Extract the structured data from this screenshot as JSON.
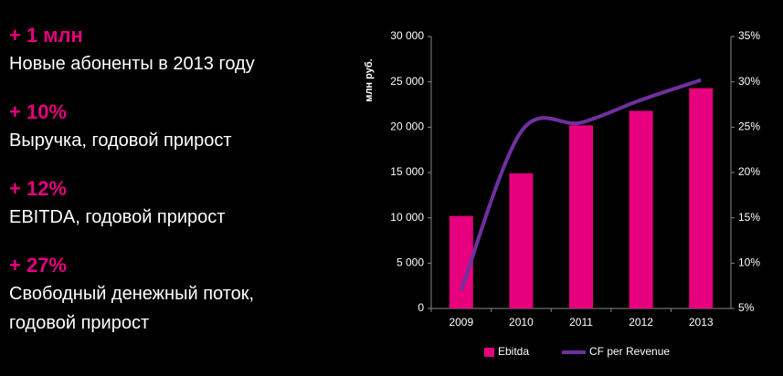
{
  "highlights": [
    {
      "value": "+ 1 млн",
      "lines": [
        "Новые абоненты в 2013 году"
      ]
    },
    {
      "value": "+ 10%",
      "lines": [
        "Выручка, годовой прирост"
      ]
    },
    {
      "value": "+ 12%",
      "lines": [
        "EBITDA, годовой прирост"
      ]
    },
    {
      "value": "+ 27%",
      "lines": [
        "Свободный денежный поток,",
        "годовой прирост"
      ]
    }
  ],
  "chart_data": {
    "type": "bar",
    "y_label": "млн руб.",
    "categories": [
      "2009",
      "2010",
      "2011",
      "2012",
      "2013"
    ],
    "series": [
      {
        "name": "Ebitda",
        "color": "#e6007e",
        "type": "bar",
        "values": [
          10200,
          14900,
          20200,
          21800,
          24300
        ]
      },
      {
        "name": "CF per Revenue",
        "color": "#7030a0",
        "type": "line",
        "axis": "y2",
        "values": [
          7,
          24.5,
          25.5,
          28,
          30.2
        ]
      }
    ],
    "ylim": [
      0,
      30000
    ],
    "yticks": [
      0,
      {
        "value": 5000,
        "label": "5 000"
      },
      {
        "value": 10000,
        "label": "10 000"
      },
      {
        "value": 15000,
        "label": "15 000"
      },
      {
        "value": 20000,
        "label": "20 000"
      },
      {
        "value": 25000,
        "label": "25 000"
      },
      {
        "value": 30000,
        "label": "30 000"
      }
    ],
    "y2lim": [
      5,
      35
    ],
    "y2ticks": [
      {
        "value": 5,
        "label": "5%"
      },
      {
        "value": 10,
        "label": "10%"
      },
      {
        "value": 15,
        "label": "15%"
      },
      {
        "value": 20,
        "label": "20%"
      },
      {
        "value": 25,
        "label": "25%"
      },
      {
        "value": 30,
        "label": "30%"
      },
      {
        "value": 35,
        "label": "35%"
      }
    ],
    "legend": "bottom"
  }
}
